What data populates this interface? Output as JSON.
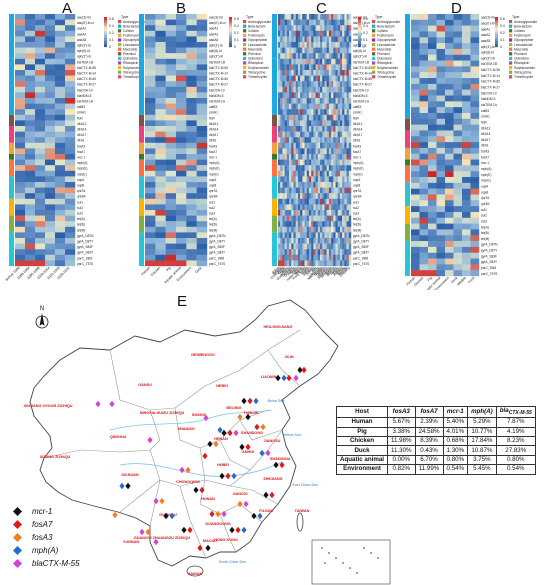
{
  "panels": {
    "A": {
      "label": "A",
      "cols": [
        "Before 2000",
        "2000-2004",
        "2005-2009",
        "2010-2014",
        "2015-2019",
        "2020-2022"
      ]
    },
    "B": {
      "label": "B",
      "cols": [
        "Human",
        "Chicken",
        "Pig",
        "Aquatic animal",
        "Environment",
        "Duck"
      ]
    },
    "C": {
      "label": "C",
      "cols": [
        "Anhui",
        "Beijing",
        "Chongqing",
        "Fujian",
        "Gansu",
        "Guangdong",
        "Guangxi",
        "Guizhou",
        "Hainan",
        "Hebei",
        "Heilongjiang",
        "Henan",
        "Hong Kong",
        "Hubei",
        "Hunan",
        "Jiangsu",
        "Jiangxi",
        "Jilin",
        "Liaoning",
        "Neimenggu",
        "Ningxia",
        "Qinghai",
        "Shaanxi",
        "Shandong",
        "Shanghai",
        "Shanxi",
        "Sichuan",
        "Taiwan",
        "Tianjin",
        "Xinjiang",
        "Xizang",
        "Yunnan",
        "Zhejiang"
      ]
    },
    "D": {
      "label": "D",
      "cols": [
        "Human",
        "Chicken",
        "Pig",
        "Aquatic animal",
        "Environment",
        "Duck",
        "Wildlife",
        "Food"
      ]
    },
    "E": {
      "label": "E"
    }
  },
  "chart_data": [
    {
      "type": "heatmap",
      "title": "",
      "rows": [
        "aac(3)-IId",
        "aac(6')-Ib-cr",
        "aadA1",
        "aadA2",
        "aadA5",
        "aph(3')-Ia",
        "aph(6)-Id",
        "aph(3'')-Ib",
        "blaTEM-1B",
        "blaCTX-M-55",
        "blaCTX-M-14",
        "blaCTX-M-65",
        "blaCTX-M-27",
        "blaOXA-10",
        "blaNDM-5",
        "blaTEM-1A",
        "catB3",
        "cmlA1",
        "floR",
        "dfrA12",
        "dfrA14",
        "dfrA17",
        "dfrA1",
        "fosA3",
        "fosA7",
        "mcr-1",
        "mph(A)",
        "mph(E)",
        "msr(E)",
        "oqxA",
        "oqxB",
        "qnrS1",
        "qnrB4",
        "sul1",
        "sul2",
        "sul3",
        "tet(A)",
        "tet(B)",
        "tet(M)",
        "gyrA_D87N",
        "gyrA_D87Y",
        "gyrA_S83F",
        "gyrA_S83Y",
        "parC_S80I",
        "parC_T57S"
      ],
      "categories": [
        "Aminoglycoside",
        "Beta-lactam",
        "Colistin",
        "Fosfomycin",
        "Glycopeptide",
        "Lincosamide",
        "Macrolide",
        "Phenicol",
        "Quinolone",
        "Rifampicin",
        "Sulphonamide",
        "Tetracycline",
        "Trimethoprim"
      ],
      "colorbar": {
        "min": 0,
        "max": 1,
        "ticks": [
          "0.6",
          "0.4",
          "0.2",
          "0.1",
          "0"
        ]
      }
    }
  ],
  "map": {
    "compass": "N",
    "provinces": [
      "XINJIANG UYGUR ZIZHIQU",
      "XIZANG ZIZHIQU",
      "QINGHAI",
      "GANSU",
      "NEIMENGGU",
      "HEILONGJIANG",
      "JILIN",
      "LIAONING",
      "BEIJING",
      "TIANJIN",
      "HEBEI",
      "SHANXI",
      "SHANDONG",
      "HENAN",
      "SHAANXI",
      "NINGXIA HUIZU ZIZHIQU",
      "SICHUAN",
      "CHONGQING",
      "HUBEI",
      "ANHUI",
      "JIANGSU",
      "SHANGHAI",
      "ZHEJIANG",
      "JIANGXI",
      "HUNAN",
      "GUIZHOU",
      "YUNNAN",
      "GUANGXI ZHUANGZU ZIZHIQU",
      "GUANGDONG",
      "FUJIAN",
      "TAIWAN",
      "HONG KONG",
      "MACAU",
      "HAINAN"
    ],
    "seas": [
      "Bohai Sea",
      "Yellow Sea",
      "East China Sea",
      "South China Sea"
    ]
  },
  "legend": [
    {
      "gene": "mcr-1",
      "color": "#111111",
      "shape": "diamond"
    },
    {
      "gene": "fosA7",
      "color": "#e0191f",
      "shape": "diamond"
    },
    {
      "gene": "fosA3",
      "color": "#f07f22",
      "shape": "diamond"
    },
    {
      "gene": "mph(A)",
      "color": "#1f6fd1",
      "shape": "diamond"
    },
    {
      "gene": "blaCTX-M-55",
      "color": "#d444d4",
      "shape": "diamond"
    }
  ],
  "table": {
    "headers": [
      "Host",
      "fosA3",
      "fosA7",
      "mcr-1",
      "mph(A)",
      "blaCTX-M-55"
    ],
    "rows": [
      [
        "Human",
        "5.67%",
        "2.39%",
        "5.40%",
        "5.29%",
        "7.87%"
      ],
      [
        "Pig",
        "3.38%",
        "24.58%",
        "4.01%",
        "10.77%",
        "4.19%"
      ],
      [
        "Chicken",
        "11.98%",
        "8.39%",
        "0.68%",
        "17.84%",
        "8.23%"
      ],
      [
        "Duck",
        "11.30%",
        "0.43%",
        "1.30%",
        "10.87%",
        "27.83%"
      ],
      [
        "Aquatic animal",
        "0.00%",
        "6.70%",
        "0.80%",
        "3.75%",
        "0.80%"
      ],
      [
        "Environment",
        "0.82%",
        "11.99%",
        "0.54%",
        "5.45%",
        "0.54%"
      ]
    ]
  },
  "colors": {
    "heat_low": "#2c5fa8",
    "heat_mid": "#f8f3c4",
    "heat_high": "#c8282a",
    "category": [
      "#e34b4b",
      "#1aa9e0",
      "#2e7d32",
      "#f2a23a",
      "#9c27b0",
      "#8bc34a",
      "#ff7043",
      "#795548",
      "#26c6da",
      "#ab47bc",
      "#ffb300",
      "#7cb342",
      "#ec407a"
    ]
  }
}
